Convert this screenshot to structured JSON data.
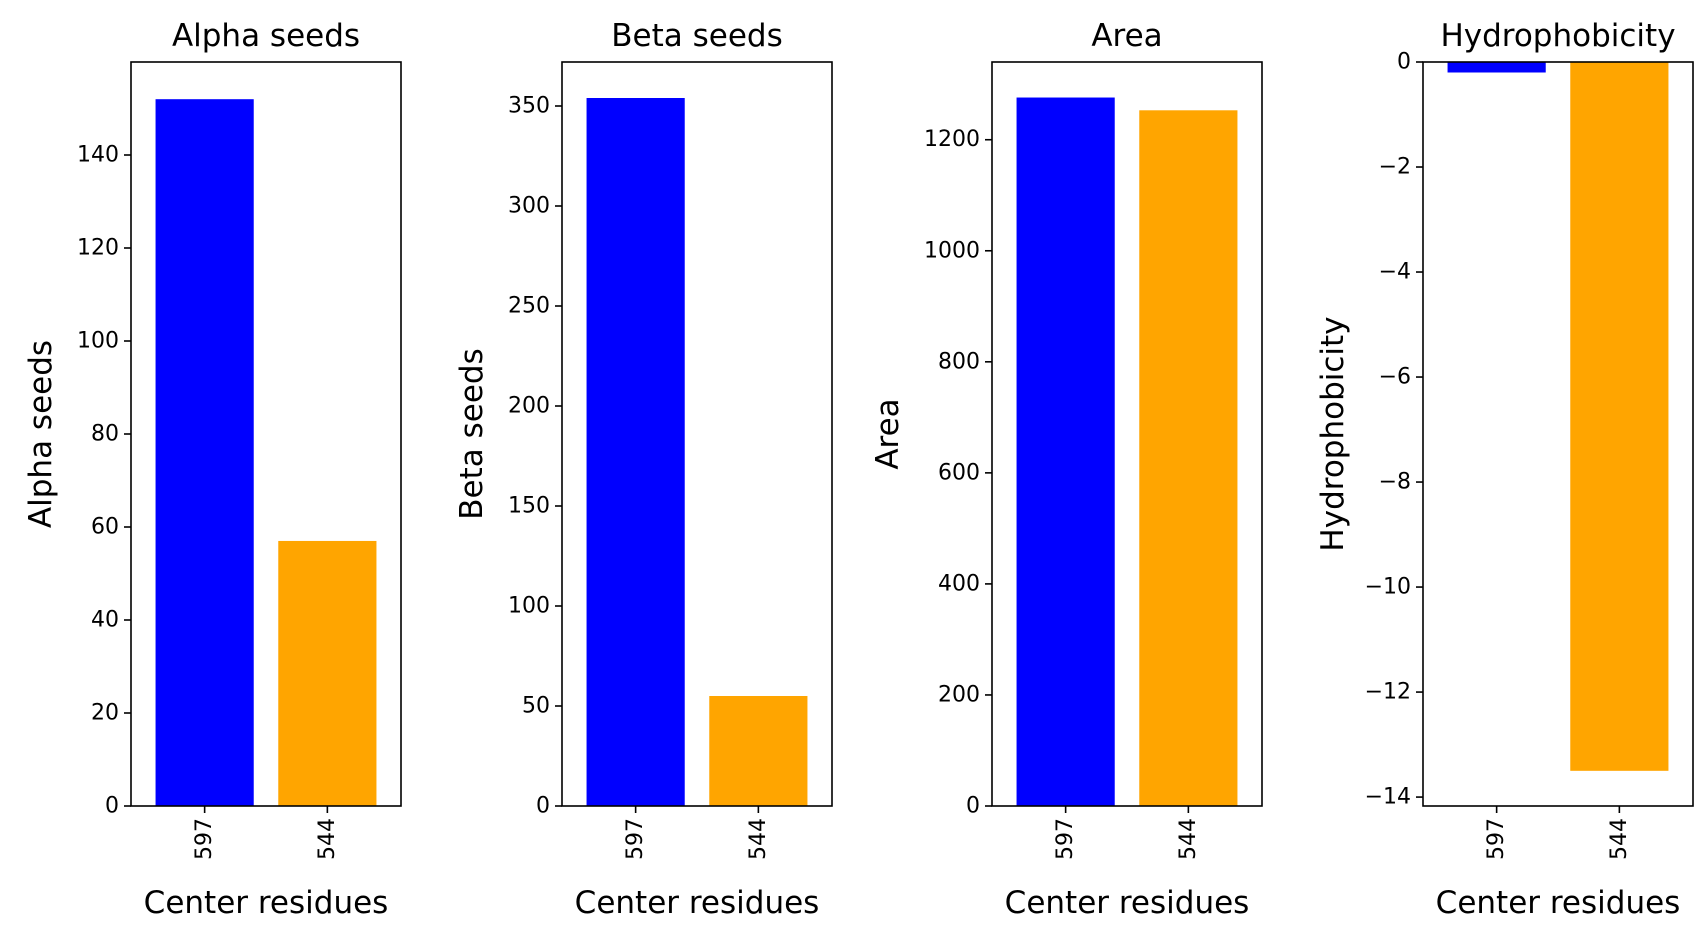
{
  "chart_data": [
    {
      "type": "bar",
      "title": "Alpha seeds",
      "xlabel": "Center residues",
      "ylabel": "Alpha seeds",
      "categories": [
        "597",
        "544"
      ],
      "values": [
        152,
        57
      ],
      "colors": [
        "#0000ff",
        "#ffa500"
      ],
      "ylim": [
        0,
        160
      ],
      "yticks": [
        0,
        20,
        40,
        60,
        80,
        100,
        120,
        140
      ],
      "grid": false
    },
    {
      "type": "bar",
      "title": "Beta seeds",
      "xlabel": "Center residues",
      "ylabel": "Beta seeds",
      "categories": [
        "597",
        "544"
      ],
      "values": [
        354,
        55
      ],
      "colors": [
        "#0000ff",
        "#ffa500"
      ],
      "ylim": [
        0,
        372
      ],
      "yticks": [
        0,
        50,
        100,
        150,
        200,
        250,
        300,
        350
      ],
      "grid": false
    },
    {
      "type": "bar",
      "title": "Area",
      "xlabel": "Center residues",
      "ylabel": "Area",
      "categories": [
        "597",
        "544"
      ],
      "values": [
        1276,
        1253
      ],
      "colors": [
        "#0000ff",
        "#ffa500"
      ],
      "ylim": [
        0,
        1340
      ],
      "yticks": [
        0,
        200,
        400,
        600,
        800,
        1000,
        1200
      ],
      "grid": false
    },
    {
      "type": "bar",
      "title": "Hydrophobicity",
      "xlabel": "Center residues",
      "ylabel": "Hydrophobicity",
      "categories": [
        "597",
        "544"
      ],
      "values": [
        -0.2,
        -13.5
      ],
      "colors": [
        "#0000ff",
        "#ffa500"
      ],
      "ylim": [
        -14.17,
        0
      ],
      "yticks": [
        0,
        -2,
        -4,
        -6,
        -8,
        -10,
        -12,
        -14
      ],
      "ytick_labels": [
        "0",
        "−2",
        "−4",
        "−6",
        "−8",
        "−10",
        "−12",
        "−14"
      ],
      "grid": false
    }
  ]
}
